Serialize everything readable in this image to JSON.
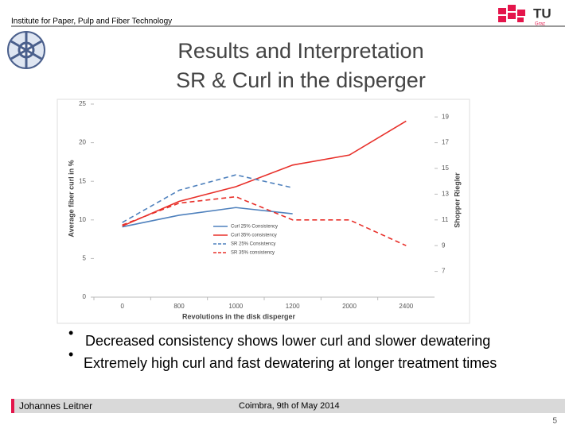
{
  "header": {
    "institute": "Institute for Paper, Pulp and Fiber Technology",
    "logo": "TU",
    "logo_sub": "Graz"
  },
  "title_lines": [
    "Results and Interpretation",
    "SR & Curl in the disperger"
  ],
  "chart_data": {
    "type": "line",
    "x_label": "Revolutions in the disk disperger",
    "y_label": "Average fiber curl in %",
    "y2_label": "Shopper Riegler",
    "categories": [
      "0",
      "800",
      "1000",
      "1200",
      "2000",
      "2400"
    ],
    "ylim": [
      0,
      25
    ],
    "yticks": [
      0,
      5,
      10,
      15,
      20,
      25
    ],
    "y2lim": [
      5,
      20
    ],
    "y2ticks": [
      7,
      9,
      11,
      13,
      15,
      17,
      19
    ],
    "series": [
      {
        "name": "Curl 25% Consistency",
        "color": "#4f81bd",
        "dashed": false,
        "values": [
          9.1,
          10.6,
          11.6,
          10.8,
          null,
          null
        ]
      },
      {
        "name": "Curl 35% consistency",
        "color": "#e8302a",
        "dashed": false,
        "values": [
          9.2,
          12.4,
          14.3,
          17.1,
          18.4,
          22.8
        ]
      },
      {
        "name": "SR 25% Consistency",
        "color": "#4f81bd",
        "dashed": true,
        "axis": "y2",
        "values": [
          10.8,
          13.3,
          14.5,
          13.5,
          null,
          null
        ]
      },
      {
        "name": "SR 35% consistency",
        "color": "#e8302a",
        "dashed": true,
        "axis": "y2",
        "values": [
          10.6,
          12.3,
          12.8,
          11.0,
          11.0,
          9.0
        ]
      }
    ]
  },
  "bullets": [
    "Decreased consistency shows lower curl and slower dewatering",
    "Extremely high curl and fast dewatering at longer treatment times"
  ],
  "footer": {
    "author": "Johannes Leitner",
    "event": "Coimbra, 9th of May  2014",
    "page": "5"
  }
}
